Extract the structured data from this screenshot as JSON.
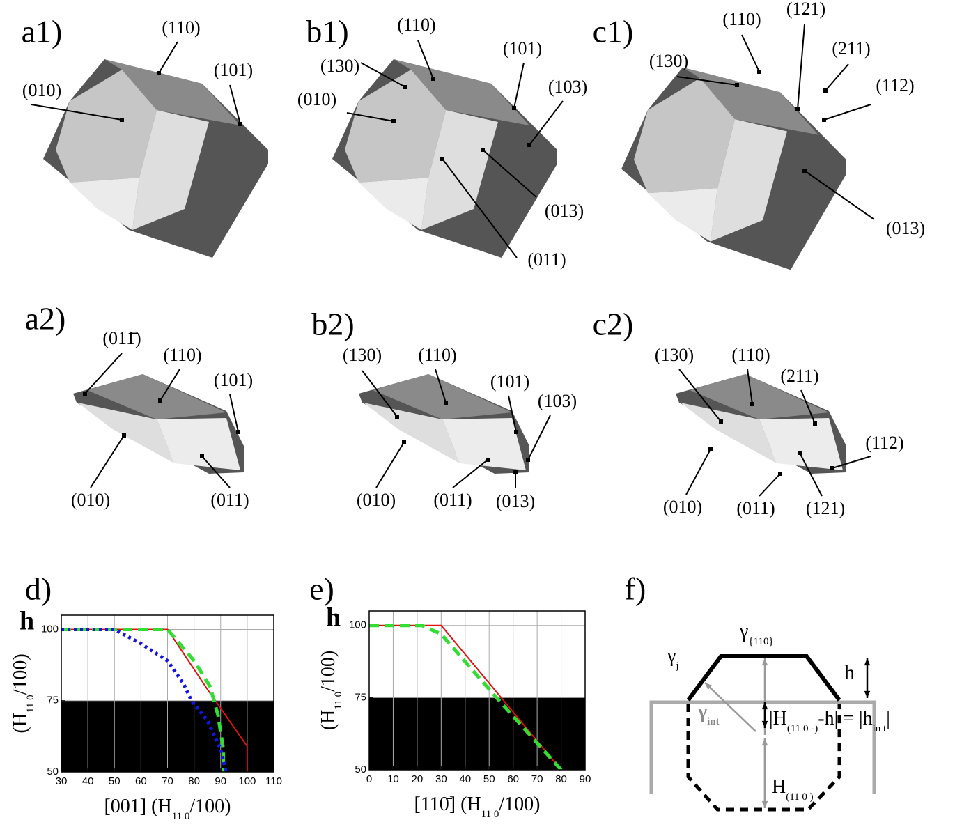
{
  "panels": [
    {
      "label": "a1)",
      "facets": [
        "(010)",
        "(110)",
        "(101)"
      ]
    },
    {
      "label": "b1)",
      "facets": [
        "(110)",
        "(130)",
        "(010)",
        "(101)",
        "(103)",
        "(013)",
        "(011)"
      ]
    },
    {
      "label": "c1)",
      "facets": [
        "(110)",
        "(121)",
        "(211)",
        "(130)",
        "(112)",
        "(013)"
      ]
    },
    {
      "label": "a2)",
      "facets": [
        "(011̄)",
        "(110)",
        "(101)",
        "(010)",
        "(011)"
      ]
    },
    {
      "label": "b2)",
      "facets": [
        "(130)",
        "(110)",
        "(101)",
        "(103)",
        "(010)",
        "(011)",
        "(013)"
      ]
    },
    {
      "label": "c2)",
      "facets": [
        "(130)",
        "(110)",
        "(211)",
        "(112)",
        "(010)",
        "(011)",
        "(121)"
      ]
    }
  ],
  "chart_data": [
    {
      "type": "line",
      "title": "d)",
      "corner_label": "h",
      "xlabel_parts": [
        "[001] (H",
        "11 0",
        "/100)"
      ],
      "ylabel_parts": [
        "(H",
        "11 0",
        "/100)"
      ],
      "xlim": [
        30,
        110
      ],
      "xticks": [
        30,
        40,
        50,
        60,
        70,
        80,
        90,
        100,
        110
      ],
      "ylim": [
        50,
        105
      ],
      "yticks": [
        50,
        75,
        100
      ],
      "grid": true,
      "shade_below": 75,
      "shade_color": "#000000",
      "series": [
        {
          "color": "#e01010",
          "dash": "solid",
          "x": [
            30,
            70,
            85,
            100,
            100
          ],
          "values": [
            100,
            100,
            79,
            59,
            50
          ]
        },
        {
          "color": "#33dd33",
          "dash": "dashed",
          "x": [
            30,
            70,
            80,
            86,
            89,
            91,
            91
          ],
          "values": [
            100,
            100,
            89,
            80,
            70,
            58,
            50
          ]
        },
        {
          "color": "#1515e0",
          "dash": "dotted",
          "x": [
            30,
            50,
            60,
            70,
            76,
            79,
            85,
            90,
            92
          ],
          "values": [
            100,
            100,
            95,
            89,
            81,
            75,
            68,
            58,
            50
          ]
        }
      ]
    },
    {
      "type": "line",
      "title": "e)",
      "corner_label": "h",
      "xlabel_parts": [
        "[11",
        "0̄",
        "] (H",
        "11 0",
        "/100)"
      ],
      "ylabel_parts": [
        "(H",
        "11 0",
        "/100)"
      ],
      "xlim": [
        0,
        90
      ],
      "xticks": [
        0,
        10,
        20,
        30,
        40,
        50,
        60,
        70,
        80,
        90
      ],
      "ylim": [
        50,
        105
      ],
      "yticks": [
        50,
        75,
        100
      ],
      "grid": true,
      "shade_below": 75,
      "shade_color": "#000000",
      "series": [
        {
          "color": "#e01010",
          "dash": "solid",
          "x": [
            0,
            30,
            80
          ],
          "values": [
            100,
            100,
            50
          ]
        },
        {
          "color": "#33dd33",
          "dash": "dashed",
          "x": [
            0,
            22,
            30,
            52,
            80
          ],
          "values": [
            100,
            100,
            97,
            76,
            50
          ]
        }
      ]
    }
  ],
  "diagram": {
    "label": "f)",
    "gamma_j": [
      "γ",
      "j"
    ],
    "gamma_110": [
      "γ",
      "{110}"
    ],
    "h": "h",
    "gamma_int": [
      "γ",
      "int"
    ],
    "equation": [
      "|H",
      "(11 0 -)",
      "-h| = |h",
      "in t",
      "|"
    ],
    "H": [
      "H",
      "(11 0 )"
    ]
  }
}
